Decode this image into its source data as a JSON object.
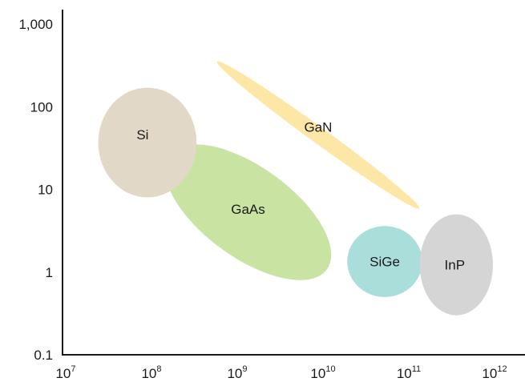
{
  "chart_data": {
    "type": "scatter",
    "title": "",
    "xlabel": "",
    "ylabel": "",
    "x_scale": "log",
    "y_scale": "log",
    "xlim": [
      10000000,
      1000000000000
    ],
    "ylim": [
      0.1,
      1000
    ],
    "grid": false,
    "legend": "none",
    "x_ticks": [
      {
        "base": "10",
        "exp": "7"
      },
      {
        "base": "10",
        "exp": "8"
      },
      {
        "base": "10",
        "exp": "9"
      },
      {
        "base": "10",
        "exp": "10"
      },
      {
        "base": "10",
        "exp": "11"
      },
      {
        "base": "10",
        "exp": "12"
      }
    ],
    "y_ticks": [
      "0.1",
      "1",
      "10",
      "100",
      "1,000"
    ],
    "regions": [
      {
        "name": "GaAs",
        "color": "#c9e3a3",
        "x_range": [
          150000000,
          13000000000
        ],
        "y_range": [
          0.8,
          35
        ],
        "tilt": "down"
      },
      {
        "name": "Si",
        "color": "#e2d8c8",
        "x_range": [
          25000000,
          350000000
        ],
        "y_range": [
          8,
          170
        ],
        "tilt": "level"
      },
      {
        "name": "GaN",
        "color": "#fde7a6",
        "x_range": [
          700000000,
          120000000000
        ],
        "y_range": [
          9,
          230
        ],
        "tilt": "down"
      },
      {
        "name": "SiGe",
        "color": "#aadeda",
        "x_range": [
          20000000000,
          150000000000
        ],
        "y_range": [
          0.5,
          3.6
        ],
        "tilt": "level"
      },
      {
        "name": "InP",
        "color": "#d5d5d5",
        "x_range": [
          140000000000,
          1000000000000
        ],
        "y_range": [
          0.3,
          5
        ],
        "tilt": "level"
      }
    ]
  }
}
